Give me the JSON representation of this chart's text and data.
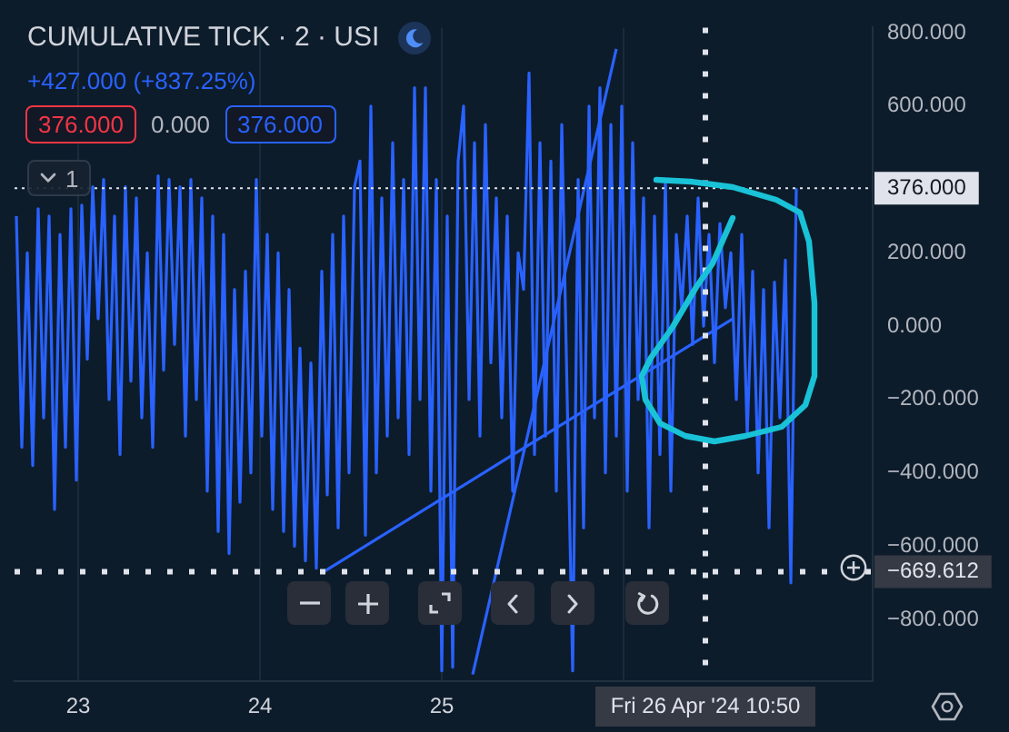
{
  "chart_data": {
    "type": "line",
    "title": "CUMULATIVE TICK · 2 · USI",
    "subtitle": "+427.000 (+837.25%)",
    "annotations": [
      "376.000",
      "0.000",
      "376.000",
      "1"
    ],
    "series": [
      {
        "color": "#2962ff",
        "x": [
          22.66,
          22.69,
          22.72,
          22.75,
          22.78,
          22.81,
          22.84,
          22.87,
          22.9,
          22.93,
          22.96,
          22.99,
          23.02,
          23.05,
          23.08,
          23.11,
          23.14,
          23.17,
          23.2,
          23.23,
          23.26,
          23.29,
          23.32,
          23.35,
          23.38,
          23.41,
          23.44,
          23.47,
          23.5,
          23.53,
          23.56,
          23.59,
          23.62,
          23.65,
          23.68,
          23.71,
          23.74,
          23.77,
          23.8,
          23.83,
          23.86,
          23.89,
          23.92,
          23.95,
          23.98,
          24.01,
          24.04,
          24.07,
          24.1,
          24.13,
          24.16,
          24.19,
          24.22,
          24.25,
          24.28,
          24.31,
          24.34,
          24.37,
          24.4,
          24.43,
          24.46,
          24.49,
          24.52,
          24.55,
          24.58,
          24.61,
          24.64,
          24.67,
          24.7,
          24.73,
          24.76,
          24.79,
          24.82,
          24.85,
          24.88,
          24.91,
          24.94,
          24.97,
          25.0,
          25.03,
          25.06,
          25.09,
          25.12,
          25.15,
          25.18,
          25.21,
          25.24,
          25.27,
          25.3,
          25.33,
          25.36,
          25.39,
          25.42,
          25.45,
          25.48,
          25.51,
          25.54,
          25.57,
          25.6,
          25.63,
          25.66,
          25.69,
          25.72,
          25.75,
          25.78,
          25.81,
          25.84,
          25.87,
          25.9,
          25.93,
          25.96,
          25.99,
          26.02,
          26.05,
          26.08,
          26.11,
          26.14,
          26.17,
          26.2,
          26.23,
          26.26,
          26.29,
          26.32,
          26.35,
          26.38,
          26.41,
          26.44,
          26.47,
          26.5,
          26.53,
          26.56,
          26.59,
          26.62,
          26.65,
          26.68,
          26.71,
          26.74,
          26.77,
          26.8,
          26.83,
          26.86,
          26.89,
          26.92,
          26.95
        ],
        "values": [
          300,
          -330,
          200,
          -380,
          320,
          -250,
          300,
          -500,
          250,
          -330,
          320,
          -420,
          330,
          -90,
          380,
          20,
          400,
          -200,
          300,
          -350,
          380,
          -150,
          350,
          -250,
          200,
          -330,
          410,
          -120,
          400,
          -50,
          380,
          -300,
          400,
          -200,
          350,
          -450,
          300,
          -560,
          250,
          -620,
          100,
          -480,
          150,
          -400,
          400,
          -300,
          250,
          -500,
          200,
          -560,
          100,
          -600,
          -60,
          -640,
          -100,
          -660,
          150,
          -460,
          250,
          -550,
          300,
          -400,
          380,
          450,
          -570,
          600,
          -400,
          350,
          -300,
          500,
          -250,
          400,
          -350,
          650,
          -200,
          650,
          -450,
          400,
          -940,
          300,
          -930,
          450,
          600,
          -200,
          500,
          -300,
          550,
          -100,
          350,
          -250,
          300,
          -450,
          200,
          100,
          690,
          -350,
          500,
          -300,
          450,
          -450,
          550,
          -200,
          -940,
          400,
          -550,
          600,
          -250,
          650,
          -400,
          550,
          -300,
          600,
          -450,
          500,
          -200,
          350,
          -550,
          300,
          -350,
          400,
          -450,
          250,
          50,
          300,
          -50,
          350,
          0,
          250,
          -100,
          280,
          50,
          200,
          -200,
          250,
          -300,
          150,
          -400,
          100,
          -550,
          120,
          -250,
          180,
          -700,
          376
        ]
      },
      {
        "type": "line",
        "color": "#2962ff",
        "x": [
          24.35,
          26.6
        ],
        "values": [
          -670,
          20
        ]
      },
      {
        "type": "line",
        "color": "#2962ff",
        "x": [
          25.17,
          25.96
        ],
        "values": [
          -950,
          756
        ]
      }
    ],
    "xlim": [
      22.65,
      27.37
    ],
    "xticks": [
      23,
      24,
      25,
      {
        "value": 26,
        "label": null
      }
    ],
    "ylim": [
      -968,
      814
    ],
    "yticks": [
      {
        "value": 800,
        "label": "800.000"
      },
      {
        "value": 600,
        "label": "600.000"
      },
      {
        "value": 200,
        "label": "200.000"
      },
      {
        "value": 0,
        "label": "0.000"
      },
      {
        "value": -200,
        "label": "−200.000"
      },
      {
        "value": -400,
        "label": "−400.000"
      },
      {
        "value": -600,
        "label": "−600.000"
      },
      {
        "value": -800,
        "label": "−800.000"
      }
    ],
    "ref_lines": [
      {
        "axis": "y",
        "value": 376,
        "label": "376.000",
        "color": "#e0e3eb",
        "line_style": "dotted"
      },
      {
        "axis": "y",
        "value": -669.612,
        "label": "−669.612",
        "color": "#e0e3eb",
        "line_style": "dotted"
      },
      {
        "axis": "x",
        "value": 26.45,
        "label": "Fri 26 Apr '24 10:50",
        "color": "#e0e3eb",
        "line_style": "dotted"
      }
    ],
    "grid": "x"
  }
}
